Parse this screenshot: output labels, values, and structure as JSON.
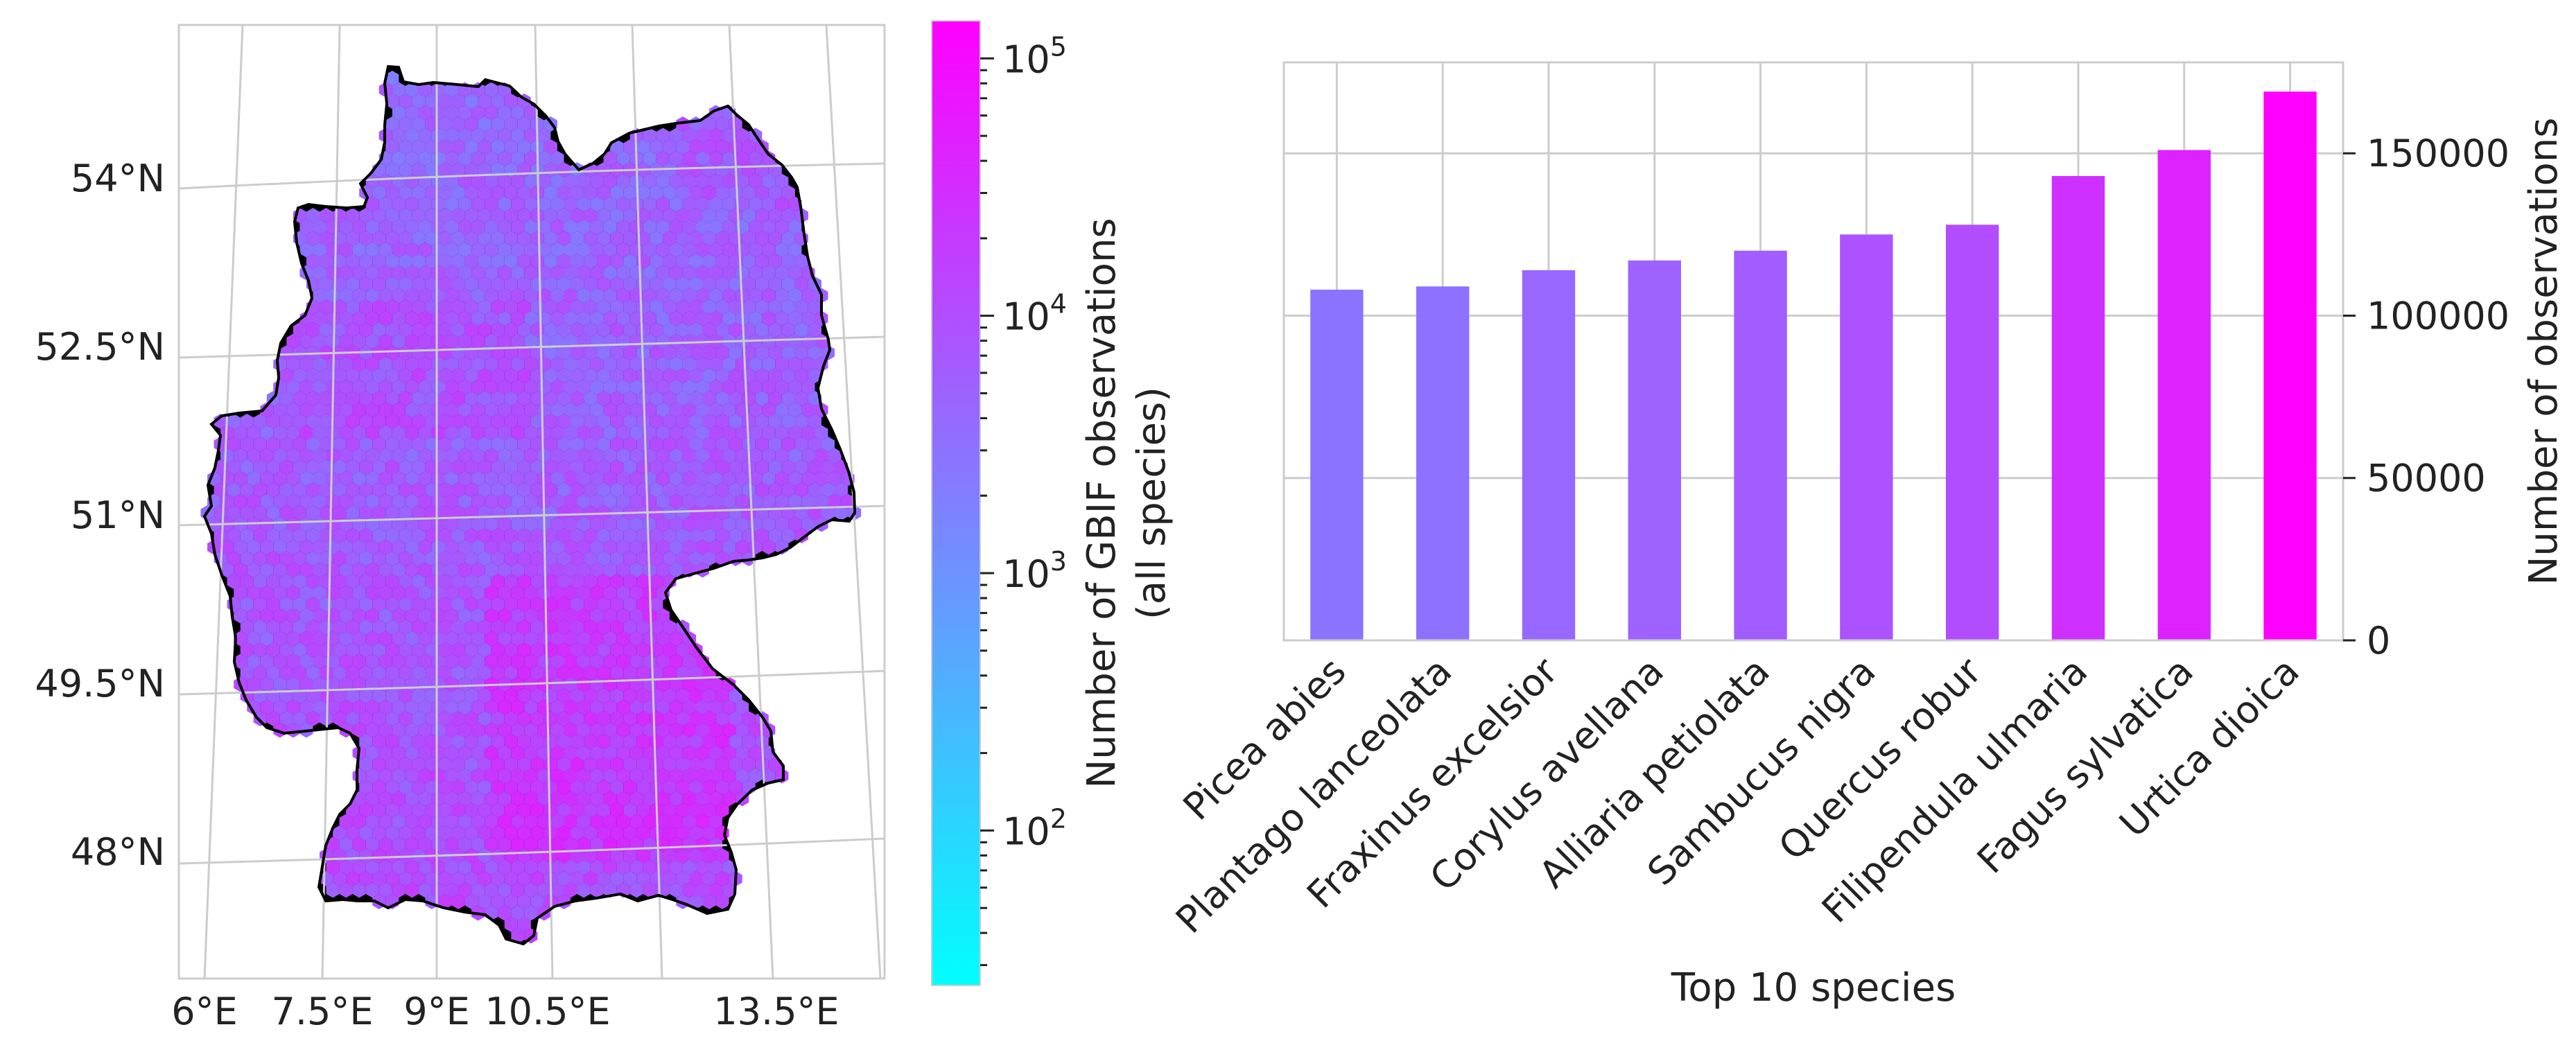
{
  "colors": {
    "cmap_low": "#00ffff",
    "cmap_high": "#ff00ff",
    "border": "#000000",
    "grid": "#cccccc"
  },
  "chart_data": [
    {
      "type": "heatmap",
      "subtype": "hexbin-map",
      "title": "",
      "region": "Germany",
      "lon_ticks": [
        "6°E",
        "7.5°E",
        "9°E",
        "10.5°E",
        "13.5°E"
      ],
      "lat_ticks": [
        "54°N",
        "52.5°N",
        "51°N",
        "49.5°N",
        "48°N"
      ],
      "grid": true,
      "colorbar": {
        "label_line1": "Number of GBIF observations",
        "label_line2": "(all species)",
        "scale": "log",
        "range": [
          25,
          140000
        ],
        "major_ticks": [
          {
            "value": 100,
            "base": "10",
            "exp": "2"
          },
          {
            "value": 1000,
            "base": "10",
            "exp": "3"
          },
          {
            "value": 10000,
            "base": "10",
            "exp": "4"
          },
          {
            "value": 100000,
            "base": "10",
            "exp": "5"
          }
        ]
      }
    },
    {
      "type": "bar",
      "title": "",
      "xlabel": "Top 10 species",
      "ylabel": "Number of observations",
      "yaxis_side": "right",
      "ylim": [
        0,
        178000
      ],
      "yticks": [
        0,
        50000,
        100000,
        150000
      ],
      "grid": true,
      "categories": [
        "Picea abies",
        "Plantago lanceolata",
        "Fraxinus excelsior",
        "Corylus avellana",
        "Alliaria petiolata",
        "Sambucus nigra",
        "Quercus robur",
        "Filipendula ulmaria",
        "Fagus sylvatica",
        "Urtica dioica"
      ],
      "values": [
        108000,
        109000,
        114000,
        117000,
        120000,
        125000,
        128000,
        143000,
        151000,
        169000
      ]
    }
  ]
}
